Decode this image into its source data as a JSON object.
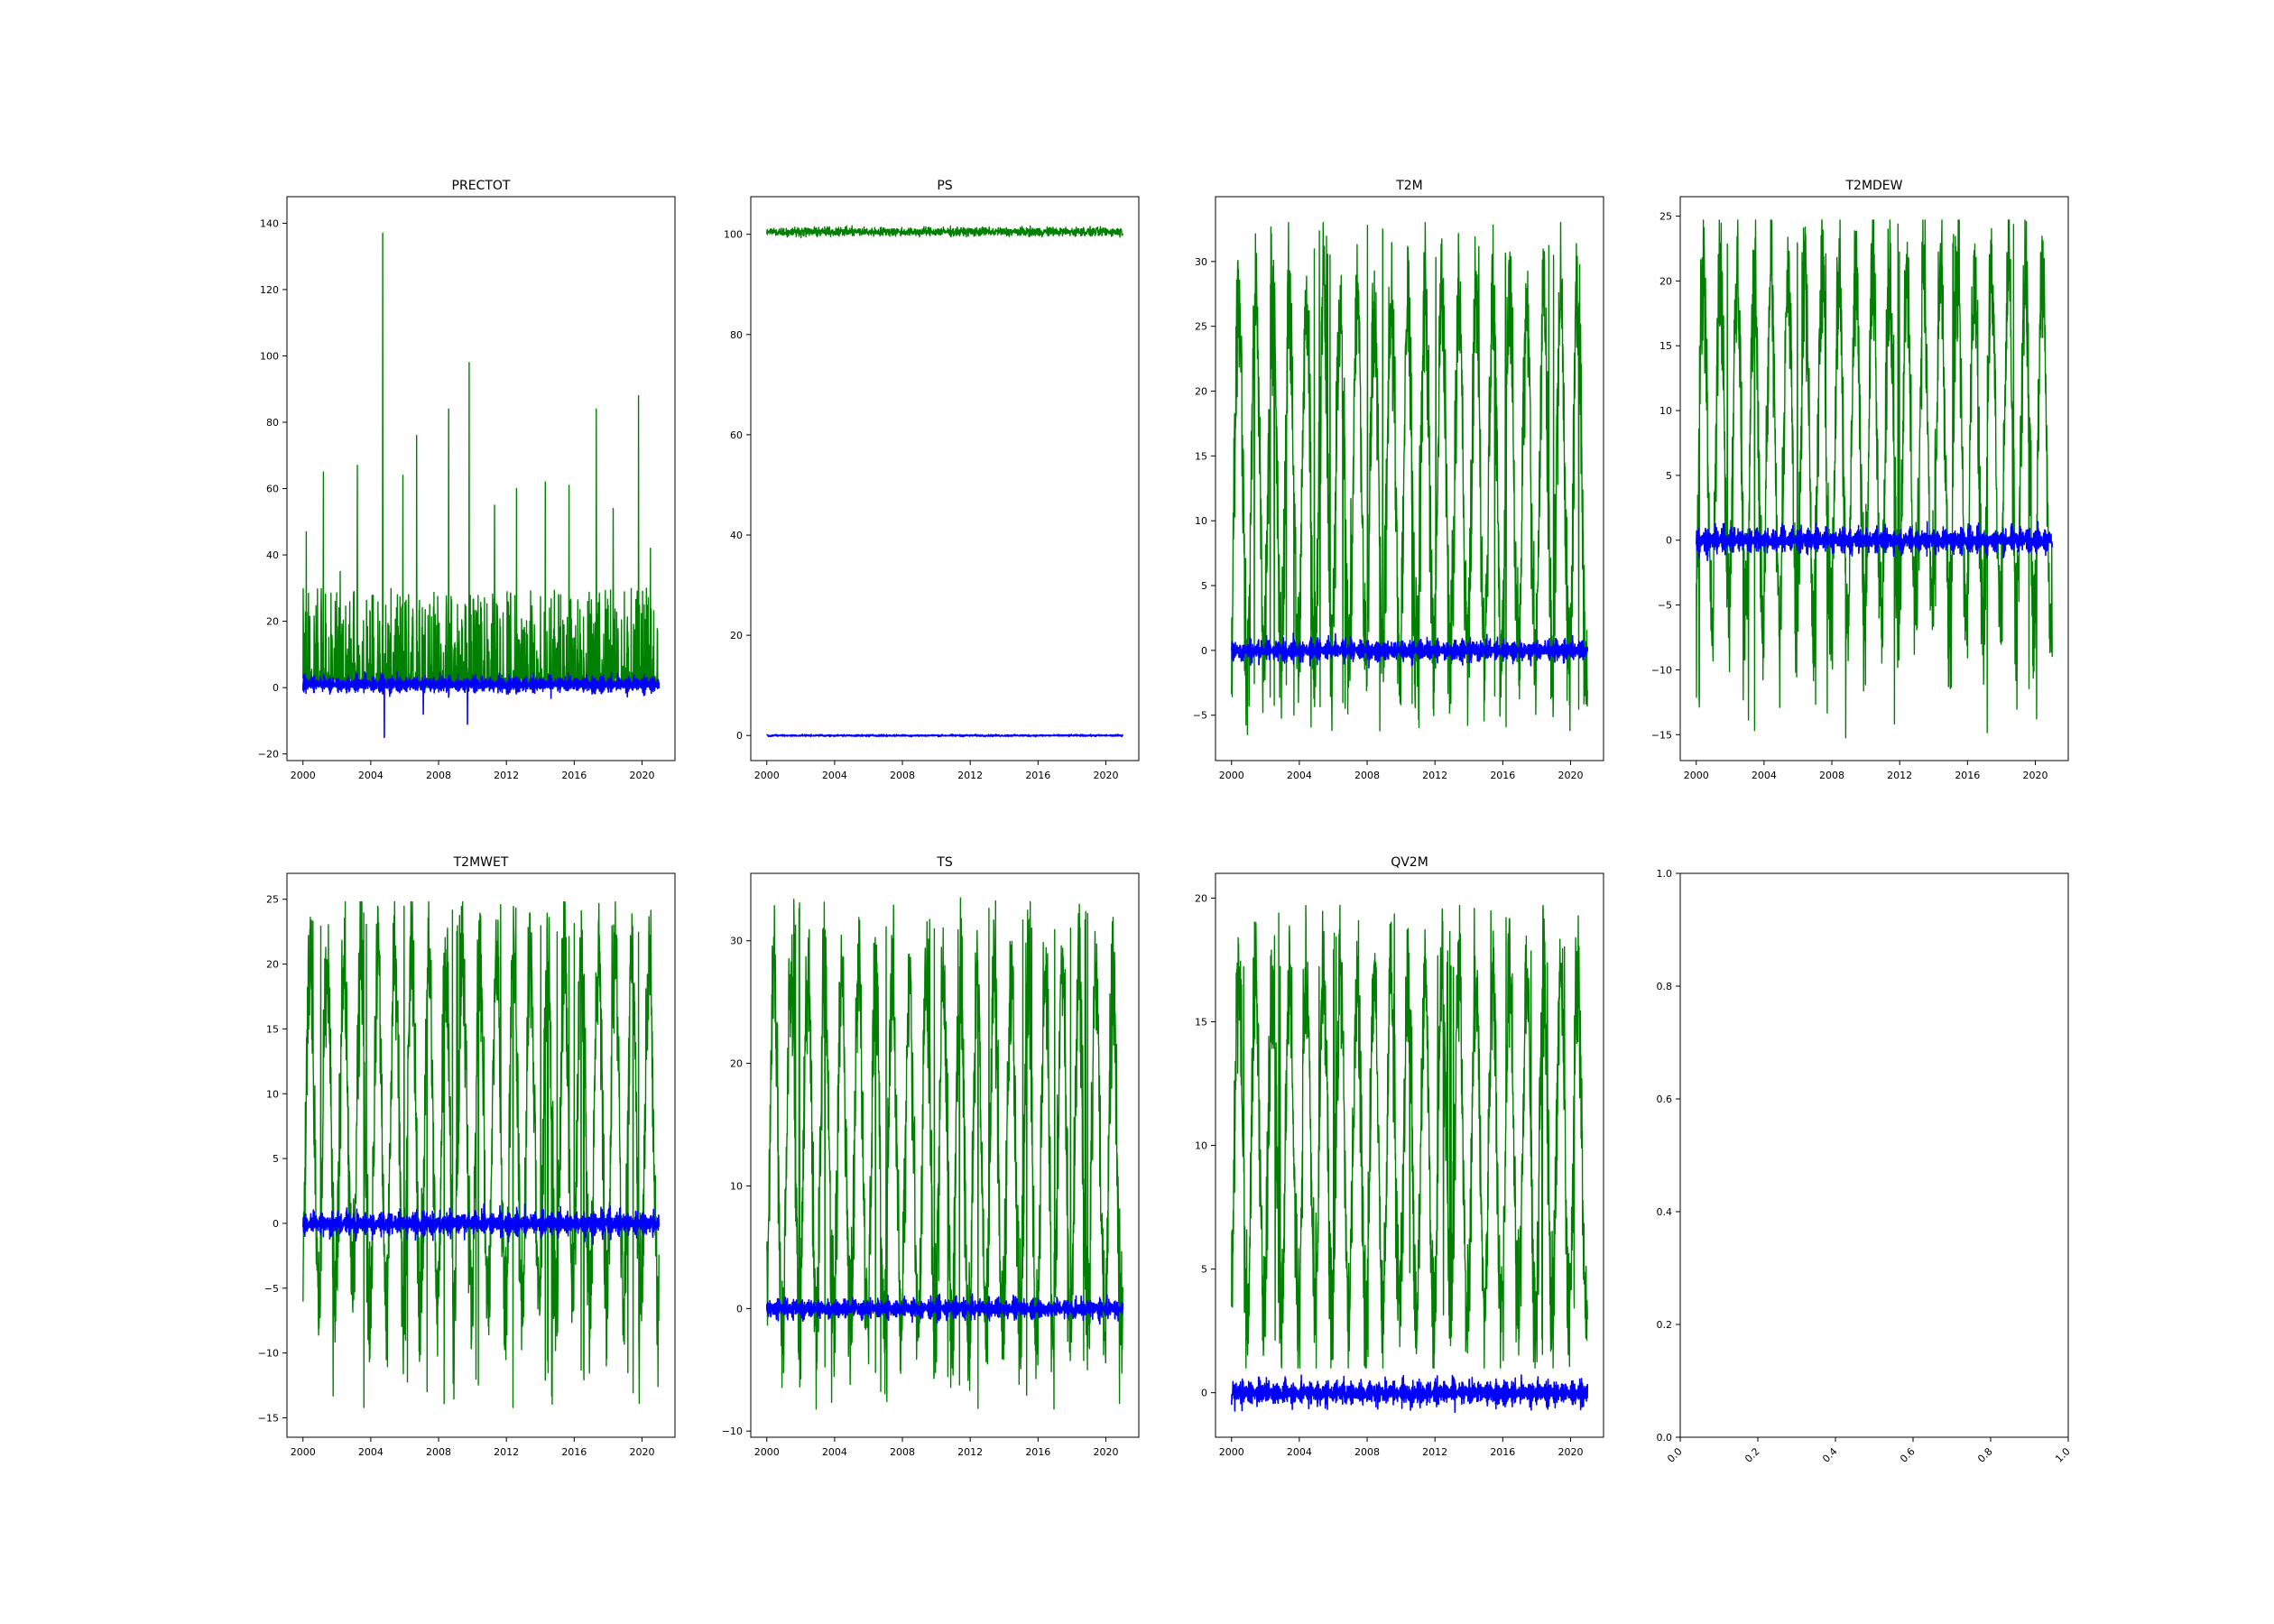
{
  "colors": {
    "green": "#008000",
    "blue": "#0000ff",
    "axes": "#000000",
    "background": "#ffffff"
  },
  "chart_data": [
    {
      "type": "line",
      "title": "PRECTOT",
      "xlabel": "",
      "ylabel": "",
      "xlim": [
        2000,
        2021
      ],
      "ylim": [
        -22,
        148
      ],
      "grid": false,
      "legend": "none",
      "xticks": [
        "2000",
        "2004",
        "2008",
        "2012",
        "2016",
        "2020"
      ],
      "yticks": [
        "-20",
        "0",
        "20",
        "40",
        "60",
        "80",
        "100",
        "120",
        "140"
      ],
      "series": [
        {
          "color": "green",
          "style": "spike",
          "x": [
            2000,
            2021
          ],
          "base": 0,
          "typical_max": 30,
          "peaks": [
            [
              2000.2,
              47
            ],
            [
              2001.2,
              65
            ],
            [
              2002.2,
              35
            ],
            [
              2003.2,
              67
            ],
            [
              2004.7,
              137
            ],
            [
              2005.9,
              64
            ],
            [
              2006.7,
              76
            ],
            [
              2008.6,
              84
            ],
            [
              2009.8,
              98
            ],
            [
              2011.3,
              55
            ],
            [
              2012.6,
              60
            ],
            [
              2014.3,
              62
            ],
            [
              2015.7,
              61
            ],
            [
              2017.3,
              84
            ],
            [
              2018.3,
              54
            ],
            [
              2019.8,
              88
            ],
            [
              2020.5,
              42
            ]
          ]
        },
        {
          "color": "blue",
          "style": "noise",
          "x": [
            2000,
            2021
          ],
          "center": 1,
          "amplitude": 4,
          "dips": [
            [
              2004.8,
              -15
            ],
            [
              2009.7,
              -11
            ],
            [
              2007.1,
              -8
            ]
          ]
        }
      ]
    },
    {
      "type": "line",
      "title": "PS",
      "xlabel": "",
      "ylabel": "",
      "xlim": [
        2000,
        2021
      ],
      "ylim": [
        -5,
        107.5
      ],
      "grid": false,
      "legend": "none",
      "xticks": [
        "2000",
        "2004",
        "2008",
        "2012",
        "2016",
        "2020"
      ],
      "yticks": [
        "0",
        "20",
        "40",
        "60",
        "80",
        "100"
      ],
      "series": [
        {
          "color": "green",
          "style": "band",
          "x": [
            2000,
            2021
          ],
          "center": 100.5,
          "amplitude": 1.3
        },
        {
          "color": "blue",
          "style": "band",
          "x": [
            2000,
            2021
          ],
          "center": 0,
          "amplitude": 0.3
        }
      ]
    },
    {
      "type": "line",
      "title": "T2M",
      "xlabel": "",
      "ylabel": "",
      "xlim": [
        2000,
        2021
      ],
      "ylim": [
        -8.5,
        35
      ],
      "grid": false,
      "legend": "none",
      "xticks": [
        "2000",
        "2004",
        "2008",
        "2012",
        "2016",
        "2020"
      ],
      "yticks": [
        "-5",
        "0",
        "5",
        "10",
        "15",
        "20",
        "25",
        "30"
      ],
      "series": [
        {
          "color": "green",
          "style": "seasonal",
          "x": [
            2000,
            2021
          ],
          "min": -3,
          "max": 30,
          "extreme_max": 33,
          "extreme_min": -6.5
        },
        {
          "color": "blue",
          "style": "noise",
          "x": [
            2000,
            2021
          ],
          "center": 0,
          "amplitude": 1.3
        }
      ]
    },
    {
      "type": "line",
      "title": "T2MDEW",
      "xlabel": "",
      "ylabel": "",
      "xlim": [
        2000,
        2021
      ],
      "ylim": [
        -17,
        26.5
      ],
      "grid": false,
      "legend": "none",
      "xticks": [
        "2000",
        "2004",
        "2008",
        "2012",
        "2016",
        "2020"
      ],
      "yticks": [
        "-15",
        "-10",
        "-5",
        "0",
        "5",
        "10",
        "15",
        "20",
        "25"
      ],
      "series": [
        {
          "color": "green",
          "style": "seasonal",
          "x": [
            2000,
            2021
          ],
          "min": -8,
          "max": 23,
          "extreme_max": 24.7,
          "extreme_min": -15.3
        },
        {
          "color": "blue",
          "style": "noise",
          "x": [
            2000,
            2021
          ],
          "center": 0,
          "amplitude": 1.5
        }
      ]
    },
    {
      "type": "line",
      "title": "T2MWET",
      "xlabel": "",
      "ylabel": "",
      "xlim": [
        2000,
        2021
      ],
      "ylim": [
        -16.5,
        27
      ],
      "grid": false,
      "legend": "none",
      "xticks": [
        "2000",
        "2004",
        "2008",
        "2012",
        "2016",
        "2020"
      ],
      "yticks": [
        "-15",
        "-10",
        "-5",
        "0",
        "5",
        "10",
        "15",
        "20",
        "25"
      ],
      "series": [
        {
          "color": "green",
          "style": "seasonal",
          "x": [
            2000,
            2021
          ],
          "min": -8,
          "max": 23,
          "extreme_max": 24.8,
          "extreme_min": -14.5
        },
        {
          "color": "blue",
          "style": "noise",
          "x": [
            2000,
            2021
          ],
          "center": 0,
          "amplitude": 1.5
        }
      ]
    },
    {
      "type": "line",
      "title": "TS",
      "xlabel": "",
      "ylabel": "",
      "xlim": [
        2000,
        2021
      ],
      "ylim": [
        -10.5,
        35.5
      ],
      "grid": false,
      "legend": "none",
      "xticks": [
        "2000",
        "2004",
        "2008",
        "2012",
        "2016",
        "2020"
      ],
      "yticks": [
        "-10",
        "0",
        "10",
        "20",
        "30"
      ],
      "series": [
        {
          "color": "green",
          "style": "seasonal",
          "x": [
            2000,
            2021
          ],
          "min": -4,
          "max": 30,
          "extreme_max": 33.5,
          "extreme_min": -8.2
        },
        {
          "color": "blue",
          "style": "noise",
          "x": [
            2000,
            2021
          ],
          "center": 0,
          "amplitude": 1.3
        }
      ]
    },
    {
      "type": "line",
      "title": "QV2M",
      "xlabel": "",
      "ylabel": "",
      "xlim": [
        2000,
        2021
      ],
      "ylim": [
        -1.8,
        21
      ],
      "grid": false,
      "legend": "none",
      "xticks": [
        "2000",
        "2004",
        "2008",
        "2012",
        "2016",
        "2020"
      ],
      "yticks": [
        "0",
        "5",
        "10",
        "15",
        "20"
      ],
      "series": [
        {
          "color": "green",
          "style": "seasonal",
          "x": [
            2000,
            2021
          ],
          "min": 2,
          "max": 18,
          "extreme_max": 19.7,
          "extreme_min": 1
        },
        {
          "color": "blue",
          "style": "noise",
          "x": [
            2000,
            2021
          ],
          "center": 0,
          "amplitude": 0.8
        }
      ]
    },
    {
      "type": "line",
      "title": "",
      "xlabel": "",
      "ylabel": "",
      "xlim": [
        0,
        1
      ],
      "ylim": [
        0,
        1
      ],
      "grid": false,
      "legend": "none",
      "rotated_xticks": true,
      "xticks": [
        "0.0",
        "0.2",
        "0.4",
        "0.6",
        "0.8",
        "1.0"
      ],
      "yticks": [
        "0.0",
        "0.2",
        "0.4",
        "0.6",
        "0.8",
        "1.0"
      ],
      "series": []
    }
  ]
}
